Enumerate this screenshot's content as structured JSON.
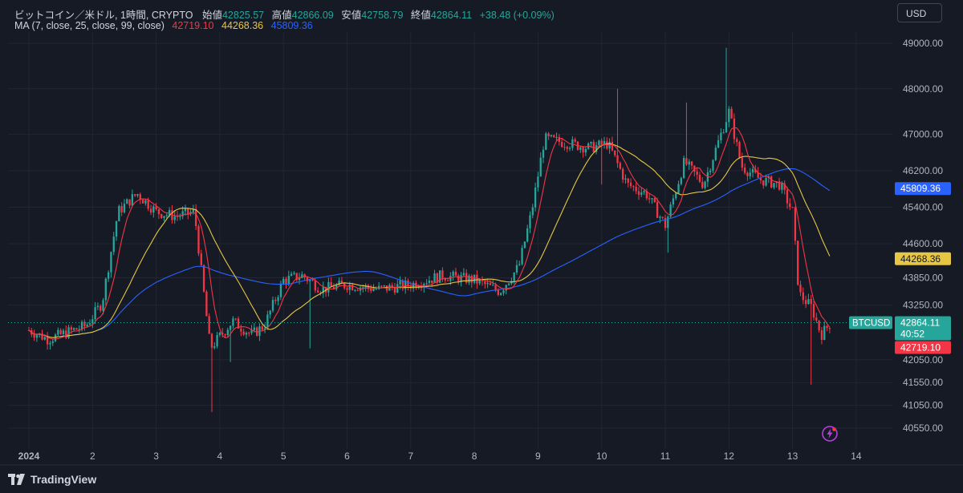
{
  "window": {
    "currency_button": "USD",
    "brand": "TradingView"
  },
  "legend": {
    "symbol": "ビットコイン／米ドル, 1時間, CRYPTO",
    "open_label": "始値",
    "open_value": "42825.57",
    "high_label": "高値",
    "high_value": "42866.09",
    "low_label": "安値",
    "low_value": "42758.79",
    "close_label": "終値",
    "close_value": "42864.11",
    "change": "+38.48 (+0.09%)",
    "ma_label": "MA (7, close, 25, close, 99, close)",
    "ma7_value": "42719.10",
    "ma25_value": "44268.36",
    "ma99_value": "45809.36"
  },
  "price_axis": {
    "ticks": [
      "49000.00",
      "48000.00",
      "47000.00",
      "46200.00",
      "45400.00",
      "44600.00",
      "43850.00",
      "43250.00",
      "42050.00",
      "41550.00",
      "41050.00",
      "40550.00"
    ],
    "badges": {
      "ma99": "45809.36",
      "ma25": "44268.36",
      "symbol_tag": "BTCUSD",
      "last_price": "42864.11",
      "countdown": "40:52",
      "ma7": "42719.10"
    }
  },
  "time_axis": {
    "ticks": [
      "2024",
      "2",
      "3",
      "4",
      "5",
      "6",
      "7",
      "8",
      "9",
      "10",
      "11",
      "12",
      "13",
      "14"
    ]
  },
  "colors": {
    "background": "#161a25",
    "up": "#26a69a",
    "down": "#f23645",
    "ma7": "#f23645",
    "ma25": "#e6c642",
    "ma99": "#2962ff",
    "grid": "#232632"
  },
  "chart_data": {
    "type": "candlestick",
    "title": "ビットコイン／米ドル, 1時間, CRYPTO",
    "timeframe": "1h",
    "xlabel": "",
    "ylabel": "",
    "ylim": [
      40300,
      49400
    ],
    "x_ticks": [
      "2024",
      "2",
      "3",
      "4",
      "5",
      "6",
      "7",
      "8",
      "9",
      "10",
      "11",
      "12",
      "13",
      "14"
    ],
    "last": {
      "open": 42825.57,
      "high": 42866.09,
      "low": 42758.79,
      "close": 42864.11,
      "change": 38.48,
      "change_pct": 0.09
    },
    "path_key_points": [
      {
        "day": 1.0,
        "price": 42700
      },
      {
        "day": 1.3,
        "price": 42500
      },
      {
        "day": 1.6,
        "price": 42650
      },
      {
        "day": 1.9,
        "price": 42800
      },
      {
        "day": 2.15,
        "price": 43300
      },
      {
        "day": 2.4,
        "price": 45300
      },
      {
        "day": 2.7,
        "price": 45700
      },
      {
        "day": 3.0,
        "price": 45300
      },
      {
        "day": 3.3,
        "price": 45200
      },
      {
        "day": 3.6,
        "price": 45300
      },
      {
        "day": 3.85,
        "price": 42300
      },
      {
        "day": 4.2,
        "price": 42900
      },
      {
        "day": 4.5,
        "price": 42600
      },
      {
        "day": 4.7,
        "price": 42800
      },
      {
        "day": 5.0,
        "price": 43800
      },
      {
        "day": 5.3,
        "price": 43900
      },
      {
        "day": 5.6,
        "price": 43600
      },
      {
        "day": 6.0,
        "price": 43700
      },
      {
        "day": 6.5,
        "price": 43600
      },
      {
        "day": 7.0,
        "price": 43700
      },
      {
        "day": 7.5,
        "price": 43900
      },
      {
        "day": 8.0,
        "price": 43800
      },
      {
        "day": 8.4,
        "price": 43550
      },
      {
        "day": 8.7,
        "price": 44100
      },
      {
        "day": 8.9,
        "price": 45300
      },
      {
        "day": 9.1,
        "price": 46900
      },
      {
        "day": 9.5,
        "price": 46800
      },
      {
        "day": 9.8,
        "price": 46700
      },
      {
        "day": 10.1,
        "price": 46800
      },
      {
        "day": 10.4,
        "price": 45900
      },
      {
        "day": 10.7,
        "price": 45700
      },
      {
        "day": 11.0,
        "price": 45000
      },
      {
        "day": 11.3,
        "price": 46400
      },
      {
        "day": 11.6,
        "price": 45900
      },
      {
        "day": 11.85,
        "price": 46900
      },
      {
        "day": 12.0,
        "price": 47500
      },
      {
        "day": 12.2,
        "price": 46300
      },
      {
        "day": 12.5,
        "price": 46000
      },
      {
        "day": 12.8,
        "price": 45900
      },
      {
        "day": 13.0,
        "price": 45300
      },
      {
        "day": 13.1,
        "price": 43500
      },
      {
        "day": 13.3,
        "price": 43200
      },
      {
        "day": 13.45,
        "price": 42600
      },
      {
        "day": 13.6,
        "price": 42860
      }
    ],
    "series": [
      {
        "name": "MA 7",
        "last": 42719.1
      },
      {
        "name": "MA 25",
        "last": 44268.36
      },
      {
        "name": "MA 99",
        "last": 45809.36
      }
    ],
    "grid": true
  }
}
